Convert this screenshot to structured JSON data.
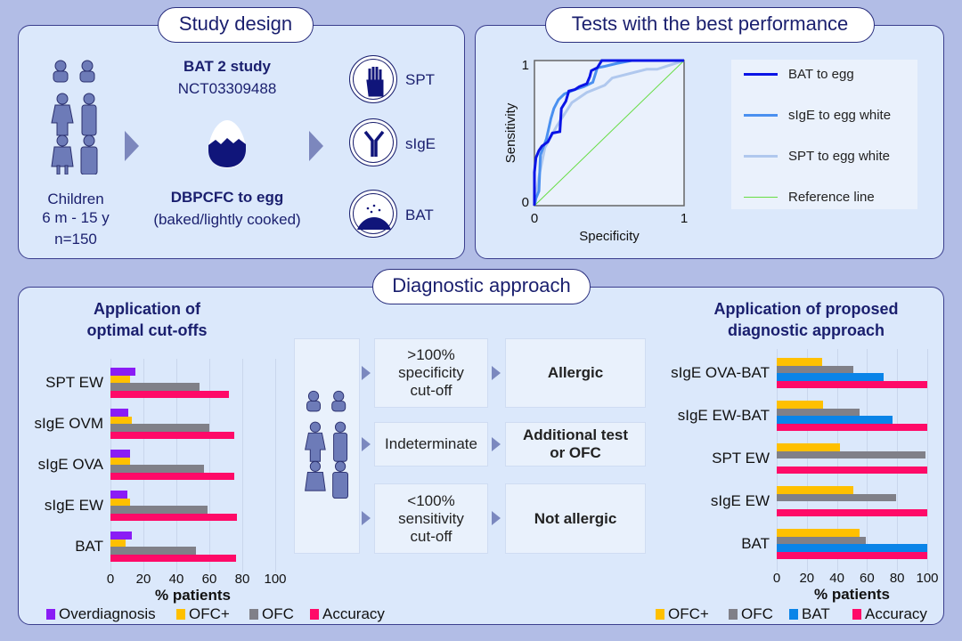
{
  "study_design": {
    "title": "Study design",
    "study_name": "BAT 2 study",
    "registry": "NCT03309488",
    "population": [
      "Children",
      "6 m - 15 y",
      "n=150"
    ],
    "challenge": "DBPCFC to egg",
    "challenge_detail": "(baked/lightly cooked)",
    "tests": [
      "SPT",
      "sIgE",
      "BAT"
    ]
  },
  "best_performance": {
    "title": "Tests with the best performance"
  },
  "diagnostic": {
    "title": "Diagnostic approach",
    "flow": [
      {
        "criterion": ">100% specificity cut-off",
        "outcome": "Allergic"
      },
      {
        "criterion": "Indeterminate",
        "outcome": "Additional test or OFC"
      },
      {
        "criterion": "<100% sensitivity cut-off",
        "outcome": "Not allergic"
      }
    ]
  },
  "colors": {
    "navy": "#1a1f6e",
    "overdiagnosis": "#8a1cf5",
    "ofc_plus": "#ffc000",
    "ofc": "#808088",
    "bat": "#0a84e8",
    "accuracy": "#ff0a68",
    "roc_bat": "#0a14e6",
    "roc_sige": "#4a90f0",
    "roc_spt": "#b0c8ee",
    "reference": "#66dd44"
  },
  "chart_data": [
    {
      "type": "line",
      "xlabel": "Specificity",
      "ylabel": "Sensitivity",
      "xlim": [
        0,
        1
      ],
      "ylim": [
        0,
        1
      ],
      "xticks": [
        "0",
        "1"
      ],
      "yticks": [
        "0",
        "1"
      ],
      "legend_position": "right",
      "series": [
        {
          "name": "BAT to egg",
          "points": [
            [
              0,
              0
            ],
            [
              0,
              0.23
            ],
            [
              0.01,
              0.33
            ],
            [
              0.03,
              0.38
            ],
            [
              0.05,
              0.41
            ],
            [
              0.09,
              0.44
            ],
            [
              0.12,
              0.5
            ],
            [
              0.17,
              0.51
            ],
            [
              0.18,
              0.67
            ],
            [
              0.21,
              0.72
            ],
            [
              0.23,
              0.79
            ],
            [
              0.27,
              0.8
            ],
            [
              0.3,
              0.82
            ],
            [
              0.35,
              0.84
            ],
            [
              0.37,
              0.89
            ],
            [
              0.38,
              0.93
            ],
            [
              0.42,
              0.95
            ],
            [
              0.45,
              1
            ],
            [
              1,
              1
            ]
          ]
        },
        {
          "name": "sIgE to egg white",
          "points": [
            [
              0,
              0
            ],
            [
              0.01,
              0.05
            ],
            [
              0.03,
              0.1
            ],
            [
              0.04,
              0.35
            ],
            [
              0.08,
              0.46
            ],
            [
              0.11,
              0.6
            ],
            [
              0.13,
              0.67
            ],
            [
              0.16,
              0.73
            ],
            [
              0.2,
              0.77
            ],
            [
              0.27,
              0.8
            ],
            [
              0.33,
              0.82
            ],
            [
              0.39,
              0.85
            ],
            [
              0.42,
              0.95
            ],
            [
              0.47,
              0.96
            ],
            [
              0.55,
              0.98
            ],
            [
              0.65,
              1
            ],
            [
              1,
              1
            ]
          ]
        },
        {
          "name": "SPT to egg white",
          "points": [
            [
              0,
              0
            ],
            [
              0.03,
              0.2
            ],
            [
              0.07,
              0.4
            ],
            [
              0.15,
              0.55
            ],
            [
              0.25,
              0.71
            ],
            [
              0.35,
              0.78
            ],
            [
              0.47,
              0.83
            ],
            [
              0.52,
              0.88
            ],
            [
              0.75,
              0.94
            ],
            [
              0.82,
              0.94
            ],
            [
              1,
              1
            ]
          ]
        },
        {
          "name": "Reference line",
          "points": [
            [
              0,
              0
            ],
            [
              1,
              1
            ]
          ]
        }
      ]
    },
    {
      "type": "bar",
      "title": "Application of optimal cut-offs",
      "xlabel": "% patients",
      "xlim": [
        0,
        100
      ],
      "xticks": [
        "0",
        "20",
        "40",
        "60",
        "80",
        "100"
      ],
      "legend_position": "bottom",
      "categories": [
        "SPT EW",
        "sIgE OVM",
        "sIgE OVA",
        "sIgE EW",
        "BAT"
      ],
      "series": [
        {
          "name": "Overdiagnosis",
          "values": [
            15,
            11,
            12,
            10,
            13
          ]
        },
        {
          "name": "OFC+",
          "values": [
            12,
            13,
            12,
            12,
            9
          ]
        },
        {
          "name": "OFC",
          "values": [
            54,
            60,
            57,
            59,
            52
          ]
        },
        {
          "name": "Accuracy",
          "values": [
            72,
            75,
            75,
            77,
            76
          ]
        }
      ]
    },
    {
      "type": "bar",
      "title": "Application of proposed diagnostic approach",
      "xlabel": "% patients",
      "xlim": [
        0,
        100
      ],
      "xticks": [
        "0",
        "20",
        "40",
        "60",
        "80",
        "100"
      ],
      "legend_position": "bottom",
      "categories": [
        "sIgE OVA-BAT",
        "sIgE EW-BAT",
        "SPT EW",
        "sIgE EW",
        "BAT"
      ],
      "series": [
        {
          "name": "OFC+",
          "values": [
            30,
            31,
            42,
            51,
            55
          ]
        },
        {
          "name": "OFC",
          "values": [
            51,
            55,
            99,
            79,
            59
          ]
        },
        {
          "name": "BAT",
          "values": [
            71,
            77,
            null,
            null,
            100
          ]
        },
        {
          "name": "Accuracy",
          "values": [
            100,
            100,
            100,
            100,
            100
          ]
        }
      ]
    }
  ]
}
